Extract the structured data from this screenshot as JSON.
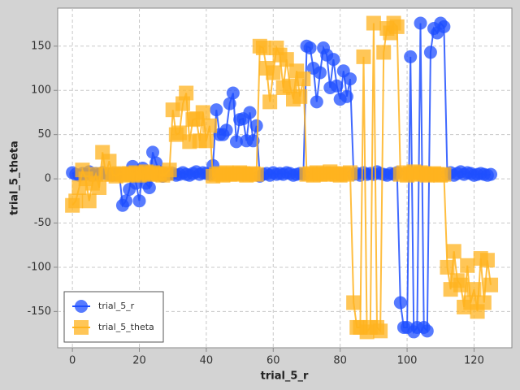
{
  "chart_data": {
    "type": "line",
    "x_label": "trial_5_r",
    "y_label": "trial_5_theta",
    "x": [
      0,
      1,
      2,
      3,
      4,
      5,
      6,
      7,
      8,
      9,
      10,
      11,
      12,
      13,
      14,
      15,
      16,
      17,
      18,
      19,
      20,
      21,
      22,
      23,
      24,
      25,
      26,
      27,
      28,
      29,
      30,
      31,
      32,
      33,
      34,
      35,
      36,
      37,
      38,
      39,
      40,
      41,
      42,
      43,
      44,
      45,
      46,
      47,
      48,
      49,
      50,
      51,
      52,
      53,
      54,
      55,
      56,
      57,
      58,
      59,
      60,
      61,
      62,
      63,
      64,
      65,
      66,
      67,
      68,
      69,
      70,
      71,
      72,
      73,
      74,
      75,
      76,
      77,
      78,
      79,
      80,
      81,
      82,
      83,
      84,
      85,
      86,
      87,
      88,
      89,
      90,
      91,
      92,
      93,
      94,
      95,
      96,
      97,
      98,
      99,
      100,
      101,
      102,
      103,
      104,
      105,
      106,
      107,
      108,
      109,
      110,
      111,
      112,
      113,
      114,
      115,
      116,
      117,
      118,
      119,
      120,
      121,
      122,
      123,
      124,
      125
    ],
    "series": [
      {
        "name": "trial_5_r",
        "color": "#1f4fff",
        "marker": "circle",
        "values": [
          7,
          5,
          4,
          6,
          5,
          8,
          4,
          6,
          5,
          7,
          6,
          5,
          4,
          5,
          6,
          -30,
          -25,
          -12,
          14,
          -5,
          -25,
          12,
          -5,
          -10,
          30,
          18,
          8,
          3,
          5,
          5,
          6,
          4,
          5,
          7,
          5,
          4,
          6,
          8,
          5,
          7,
          6,
          5,
          15,
          78,
          50,
          50,
          55,
          85,
          97,
          42,
          67,
          68,
          43,
          75,
          43,
          60,
          3,
          5,
          6,
          4,
          7,
          5,
          6,
          5,
          7,
          6,
          4,
          5,
          6,
          5,
          150,
          148,
          125,
          87,
          120,
          148,
          140,
          103,
          135,
          105,
          90,
          122,
          93,
          113,
          5,
          6,
          4,
          7,
          5,
          6,
          5,
          8,
          6,
          5,
          4,
          6,
          5,
          7,
          -140,
          -168,
          -168,
          138,
          -173,
          -168,
          176,
          -168,
          -172,
          143,
          170,
          165,
          176,
          172,
          5,
          7,
          4,
          6,
          8,
          5,
          7,
          6,
          4,
          5,
          6,
          5,
          4,
          5
        ]
      },
      {
        "name": "trial_5_theta",
        "color": "#ffb31f",
        "marker": "square",
        "values": [
          -30,
          -25,
          -10,
          10,
          0,
          -25,
          -5,
          5,
          -10,
          30,
          5,
          20,
          5,
          3,
          6,
          5,
          4,
          6,
          5,
          7,
          4,
          6,
          8,
          5,
          7,
          6,
          5,
          4,
          6,
          10,
          78,
          50,
          52,
          85,
          97,
          42,
          67,
          68,
          43,
          75,
          43,
          60,
          3,
          5,
          6,
          4,
          7,
          5,
          6,
          5,
          7,
          6,
          4,
          5,
          6,
          5,
          150,
          148,
          125,
          87,
          120,
          148,
          140,
          103,
          135,
          105,
          90,
          122,
          93,
          113,
          5,
          6,
          4,
          7,
          5,
          6,
          5,
          8,
          6,
          5,
          4,
          6,
          5,
          7,
          -140,
          -168,
          -168,
          138,
          -173,
          -168,
          176,
          -168,
          -172,
          143,
          170,
          165,
          176,
          172,
          5,
          7,
          4,
          6,
          8,
          5,
          7,
          6,
          4,
          5,
          6,
          5,
          4,
          5,
          -100,
          -125,
          -82,
          -115,
          -120,
          -145,
          -98,
          -140,
          -125,
          -150,
          -90,
          -140,
          -92,
          -120
        ]
      }
    ],
    "xlim": [
      -4.4,
      131.3
    ],
    "ylim": [
      -191,
      193
    ],
    "xticks": [
      0,
      20,
      40,
      60,
      80,
      100,
      120
    ],
    "yticks": [
      -150,
      -100,
      -50,
      0,
      50,
      100,
      150
    ],
    "grid": true,
    "legend": "lower left"
  }
}
